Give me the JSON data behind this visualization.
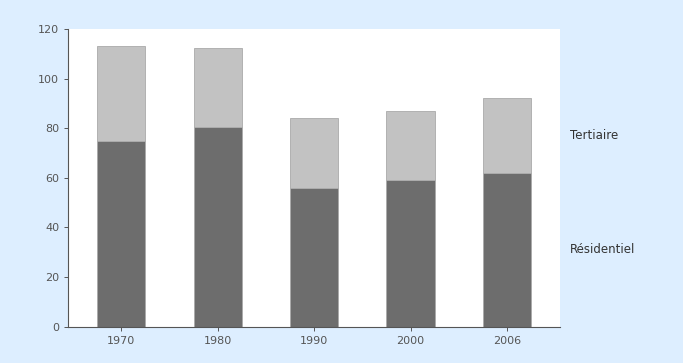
{
  "years": [
    "1970",
    "1980",
    "1990",
    "2000",
    "2006"
  ],
  "residentiel": [
    75,
    80.5,
    56,
    59,
    62
  ],
  "tertiaire": [
    38,
    32,
    28,
    28,
    30
  ],
  "color_residentiel": "#6d6d6d",
  "color_tertiaire": "#c2c2c2",
  "ylim": [
    0,
    120
  ],
  "yticks": [
    0,
    20,
    40,
    60,
    80,
    100,
    120
  ],
  "label_tertiaire": "Tertiaire",
  "label_residentiel": "Résidentiel",
  "bar_width": 0.5,
  "background_color": "#ffffff",
  "outer_background": "#ddeeff",
  "header_color": "#6aadd5",
  "edge_color": "#aaaaaa",
  "tick_fontsize": 8,
  "label_fontsize": 8,
  "annotation_fontsize": 8.5
}
